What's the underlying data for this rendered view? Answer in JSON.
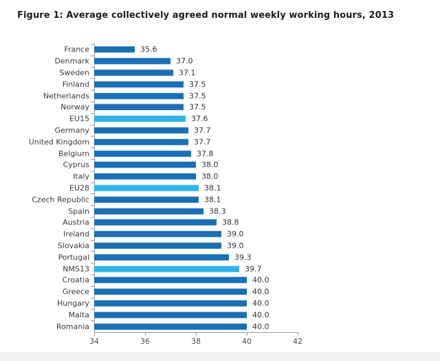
{
  "figure": {
    "title": "Figure 1: Average collectively agreed normal weekly working hours, 2013"
  },
  "colors": {
    "bar": "#1b6fb5",
    "highlight_bar": "#30b4e8",
    "axis": "#9a9a9a"
  },
  "chart_data": {
    "type": "bar",
    "orientation": "horizontal",
    "title": "Figure 1: Average collectively agreed normal weekly working hours, 2013",
    "xlabel": "",
    "ylabel": "",
    "xlim": [
      34,
      42
    ],
    "x_ticks": [
      34,
      36,
      38,
      40,
      42
    ],
    "grid": false,
    "legend": false,
    "categories": [
      "France",
      "Denmark",
      "Sweden",
      "Finland",
      "Netherlands",
      "Norway",
      "EU15",
      "Germany",
      "United Kingdom",
      "Belgium",
      "Cyprus",
      "Italy",
      "EU28",
      "Czech Republic",
      "Spain",
      "Austria",
      "Ireland",
      "Slovakia",
      "Portugal",
      "NMS13",
      "Croatia",
      "Greece",
      "Hungary",
      "Malta",
      "Romania"
    ],
    "values": [
      35.6,
      37.0,
      37.1,
      37.5,
      37.5,
      37.5,
      37.6,
      37.7,
      37.7,
      37.8,
      38.0,
      38.0,
      38.1,
      38.1,
      38.3,
      38.8,
      39.0,
      39.0,
      39.3,
      39.7,
      40.0,
      40.0,
      40.0,
      40.0,
      40.0
    ],
    "value_labels": [
      "35.6",
      "37.0",
      "37.1",
      "37.5",
      "37.5",
      "37.5",
      "37.6",
      "37.7",
      "37.7",
      "37.8",
      "38.0",
      "38.0",
      "38.1",
      "38.1",
      "38.3",
      "38.8",
      "39.0",
      "39.0",
      "39.3",
      "39.7",
      "40.0",
      "40.0",
      "40.0",
      "40.0",
      "40.0"
    ],
    "highlighted_categories": [
      "EU15",
      "EU28",
      "NMS13"
    ]
  }
}
